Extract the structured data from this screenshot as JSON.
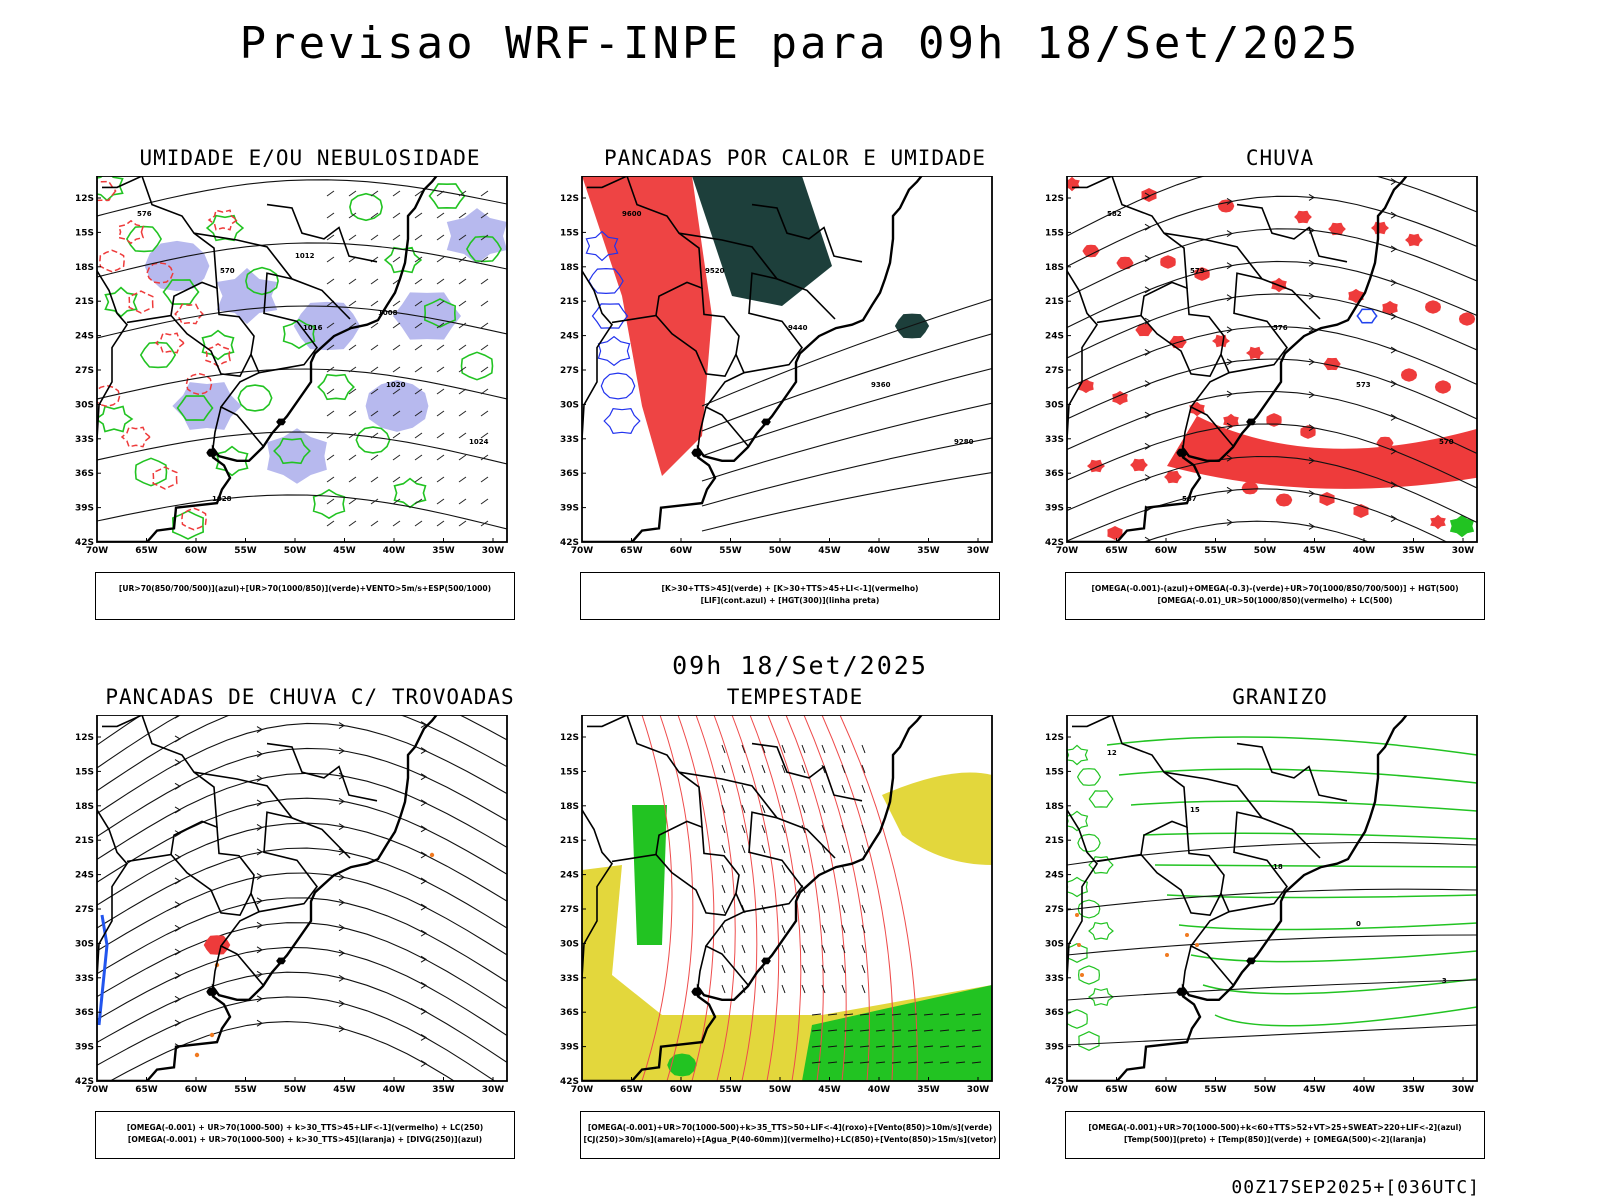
{
  "title": "Previsao WRF-INPE  para 09h 18/Set/2025",
  "mid_title": "09h 18/Set/2025",
  "footer": "00Z17SEP2025+[036UTC]",
  "lat_labels": [
    "12S",
    "15S",
    "18S",
    "21S",
    "24S",
    "27S",
    "30S",
    "33S",
    "36S",
    "39S",
    "42S"
  ],
  "lon_labels": [
    "70W",
    "65W",
    "60W",
    "55W",
    "50W",
    "45W",
    "40W",
    "35W",
    "30W"
  ],
  "panels": [
    {
      "title": "UMIDADE E/OU NEBULOSIDADE",
      "legend": [
        "[UR>70(850/700/500)](azul)+[UR>70(1000/850)](verde)+VENTO>5m/s+ESP(500/1000)"
      ],
      "contour_labels": [
        "576",
        "570",
        "1016",
        "1020",
        "1024",
        "1028",
        "1012",
        "1008"
      ]
    },
    {
      "title": "PANCADAS POR CALOR E UMIDADE",
      "legend": [
        "[K>30+TTS>45](verde) + [K>30+TTS>45+LI<-1](vermelho)",
        "[LIF](cont.azul) + [HGT(300)](linha preta)"
      ],
      "contour_labels": [
        "9600",
        "9520",
        "9440",
        "9360",
        "9280"
      ]
    },
    {
      "title": "CHUVA",
      "legend": [
        "[OMEGA(-0.001)-(azul)+OMEGA(-0.3)-(verde)+UR>70(1000/850/700/500)] + HGT(500)",
        "[OMEGA(-0.01)_UR>50(1000/850)(vermelho) + LC(500)"
      ],
      "contour_labels": [
        "582",
        "579",
        "576",
        "573",
        "570",
        "567"
      ]
    },
    {
      "title": "PANCADAS DE CHUVA C/ TROVOADAS",
      "legend": [
        "[OMEGA(-0.001) + UR>70(1000-500) + k>30_TTS>45+LIF<-1](vermelho) + LC(250)",
        "[OMEGA(-0.001) + UR>70(1000-500) + k>30_TTS>45](laranja) + [DIVG(250)](azul)"
      ],
      "contour_labels": []
    },
    {
      "title": "TEMPESTADE",
      "legend": [
        "[OMEGA(-0.001)+UR>70(1000-500)+k>35_TTS>50+LIF<-4](roxo)+[Vento(850)>10m/s](verde)",
        "[CJ(250)>30m/s](amarelo)+[Agua_P(40-60mm)](vermelho)+LC(850)+[Vento(850)>15m/s](vetor)"
      ],
      "contour_labels": []
    },
    {
      "title": "GRANIZO",
      "legend": [
        "[OMEGA(-0.001)+UR>70(1000-500)+k<60+TTS>52+VT>25+SWEAT>220+LIF<-2](azul)",
        "[Temp(500)](preto) + [Temp(850)](verde) + [OMEGA(500)<-2](laranja)"
      ],
      "contour_labels": [
        "12",
        "15",
        "18",
        "0",
        "-3"
      ]
    }
  ]
}
